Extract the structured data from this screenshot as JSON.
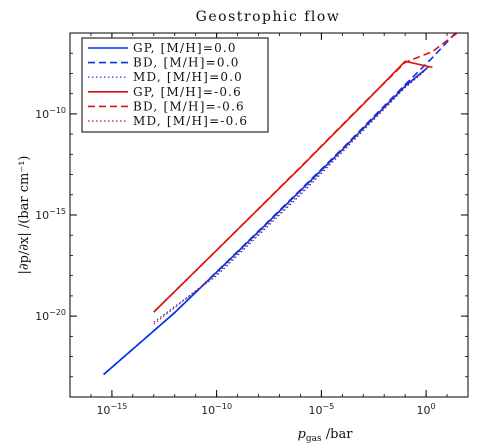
{
  "chart_data": {
    "type": "line",
    "title": "Geostrophic flow",
    "xlabel_main": "p",
    "xlabel_sub": "gas",
    "xlabel_rest": " /bar",
    "ylabel": "|∂p/∂x| /(bar cm⁻¹)",
    "x_scale": "log",
    "y_scale": "log",
    "xlim": [
      1e-17,
      100.0
    ],
    "ylim": [
      1e-24,
      1e-06
    ],
    "x_ticks": [
      {
        "base": "10",
        "exp": "−15",
        "value": 1e-15
      },
      {
        "base": "10",
        "exp": "−10",
        "value": 1e-10
      },
      {
        "base": "10",
        "exp": "−5",
        "value": 1e-05
      },
      {
        "base": "10",
        "exp": "0",
        "value": 1
      }
    ],
    "y_ticks": [
      {
        "base": "10",
        "exp": "−20",
        "value": 1e-20
      },
      {
        "base": "10",
        "exp": "−15",
        "value": 1e-15
      },
      {
        "base": "10",
        "exp": "−10",
        "value": 1e-10
      }
    ],
    "grid": false,
    "legend_position": "top-left",
    "series": [
      {
        "name": "GP, [M/H]=0.0",
        "color": "#0033ee",
        "dash": "solid",
        "x": [
          4e-16,
          1e-12,
          1e-08,
          0.0001,
          0.1,
          1.2
        ],
        "y": [
          1.3e-23,
          1.5e-20,
          1.5e-16,
          1.7e-12,
          2.4e-09,
          2e-08
        ]
      },
      {
        "name": "BD, [M/H]=0.0",
        "color": "#0033ee",
        "dash": "dashed",
        "x": [
          4e-16,
          1e-12,
          1e-08,
          0.0001,
          0.1,
          2,
          30
        ],
        "y": [
          1.3e-23,
          1.5e-20,
          1.6e-16,
          1.9e-12,
          2.8e-09,
          6e-08,
          1.2e-06
        ]
      },
      {
        "name": "MD, [M/H]=0.0",
        "color": "#0033ee",
        "dash": "dotted",
        "x": [
          1e-13,
          1e-10,
          1e-06,
          0.001,
          0.1,
          1.0
        ],
        "y": [
          5e-21,
          1e-18,
          1e-14,
          1.5e-11,
          2e-09,
          1.5e-08
        ]
      },
      {
        "name": "GP, [M/H]=-0.6",
        "color": "#dd1111",
        "dash": "solid",
        "x": [
          1e-13,
          1e-10,
          1e-06,
          0.001,
          0.1,
          2
        ],
        "y": [
          1.6e-20,
          1.8e-17,
          2.2e-13,
          3e-10,
          4e-08,
          2e-08
        ]
      },
      {
        "name": "BD, [M/H]=-0.6",
        "color": "#dd1111",
        "dash": "dashed",
        "x": [
          1e-13,
          1e-10,
          1e-06,
          0.001,
          0.1,
          2,
          30
        ],
        "y": [
          1.6e-20,
          1.8e-17,
          2.3e-13,
          3.2e-10,
          3.5e-08,
          1.2e-07,
          1e-06
        ]
      },
      {
        "name": "MD, [M/H]=-0.6",
        "color": "#dd1111",
        "dash": "dotted",
        "x": [
          1e-13,
          1e-10,
          1e-06,
          0.001,
          0.1,
          1.3
        ],
        "y": [
          4e-21,
          1.2e-18,
          1.2e-14,
          1.8e-11,
          2.2e-09,
          2e-08
        ]
      }
    ]
  }
}
